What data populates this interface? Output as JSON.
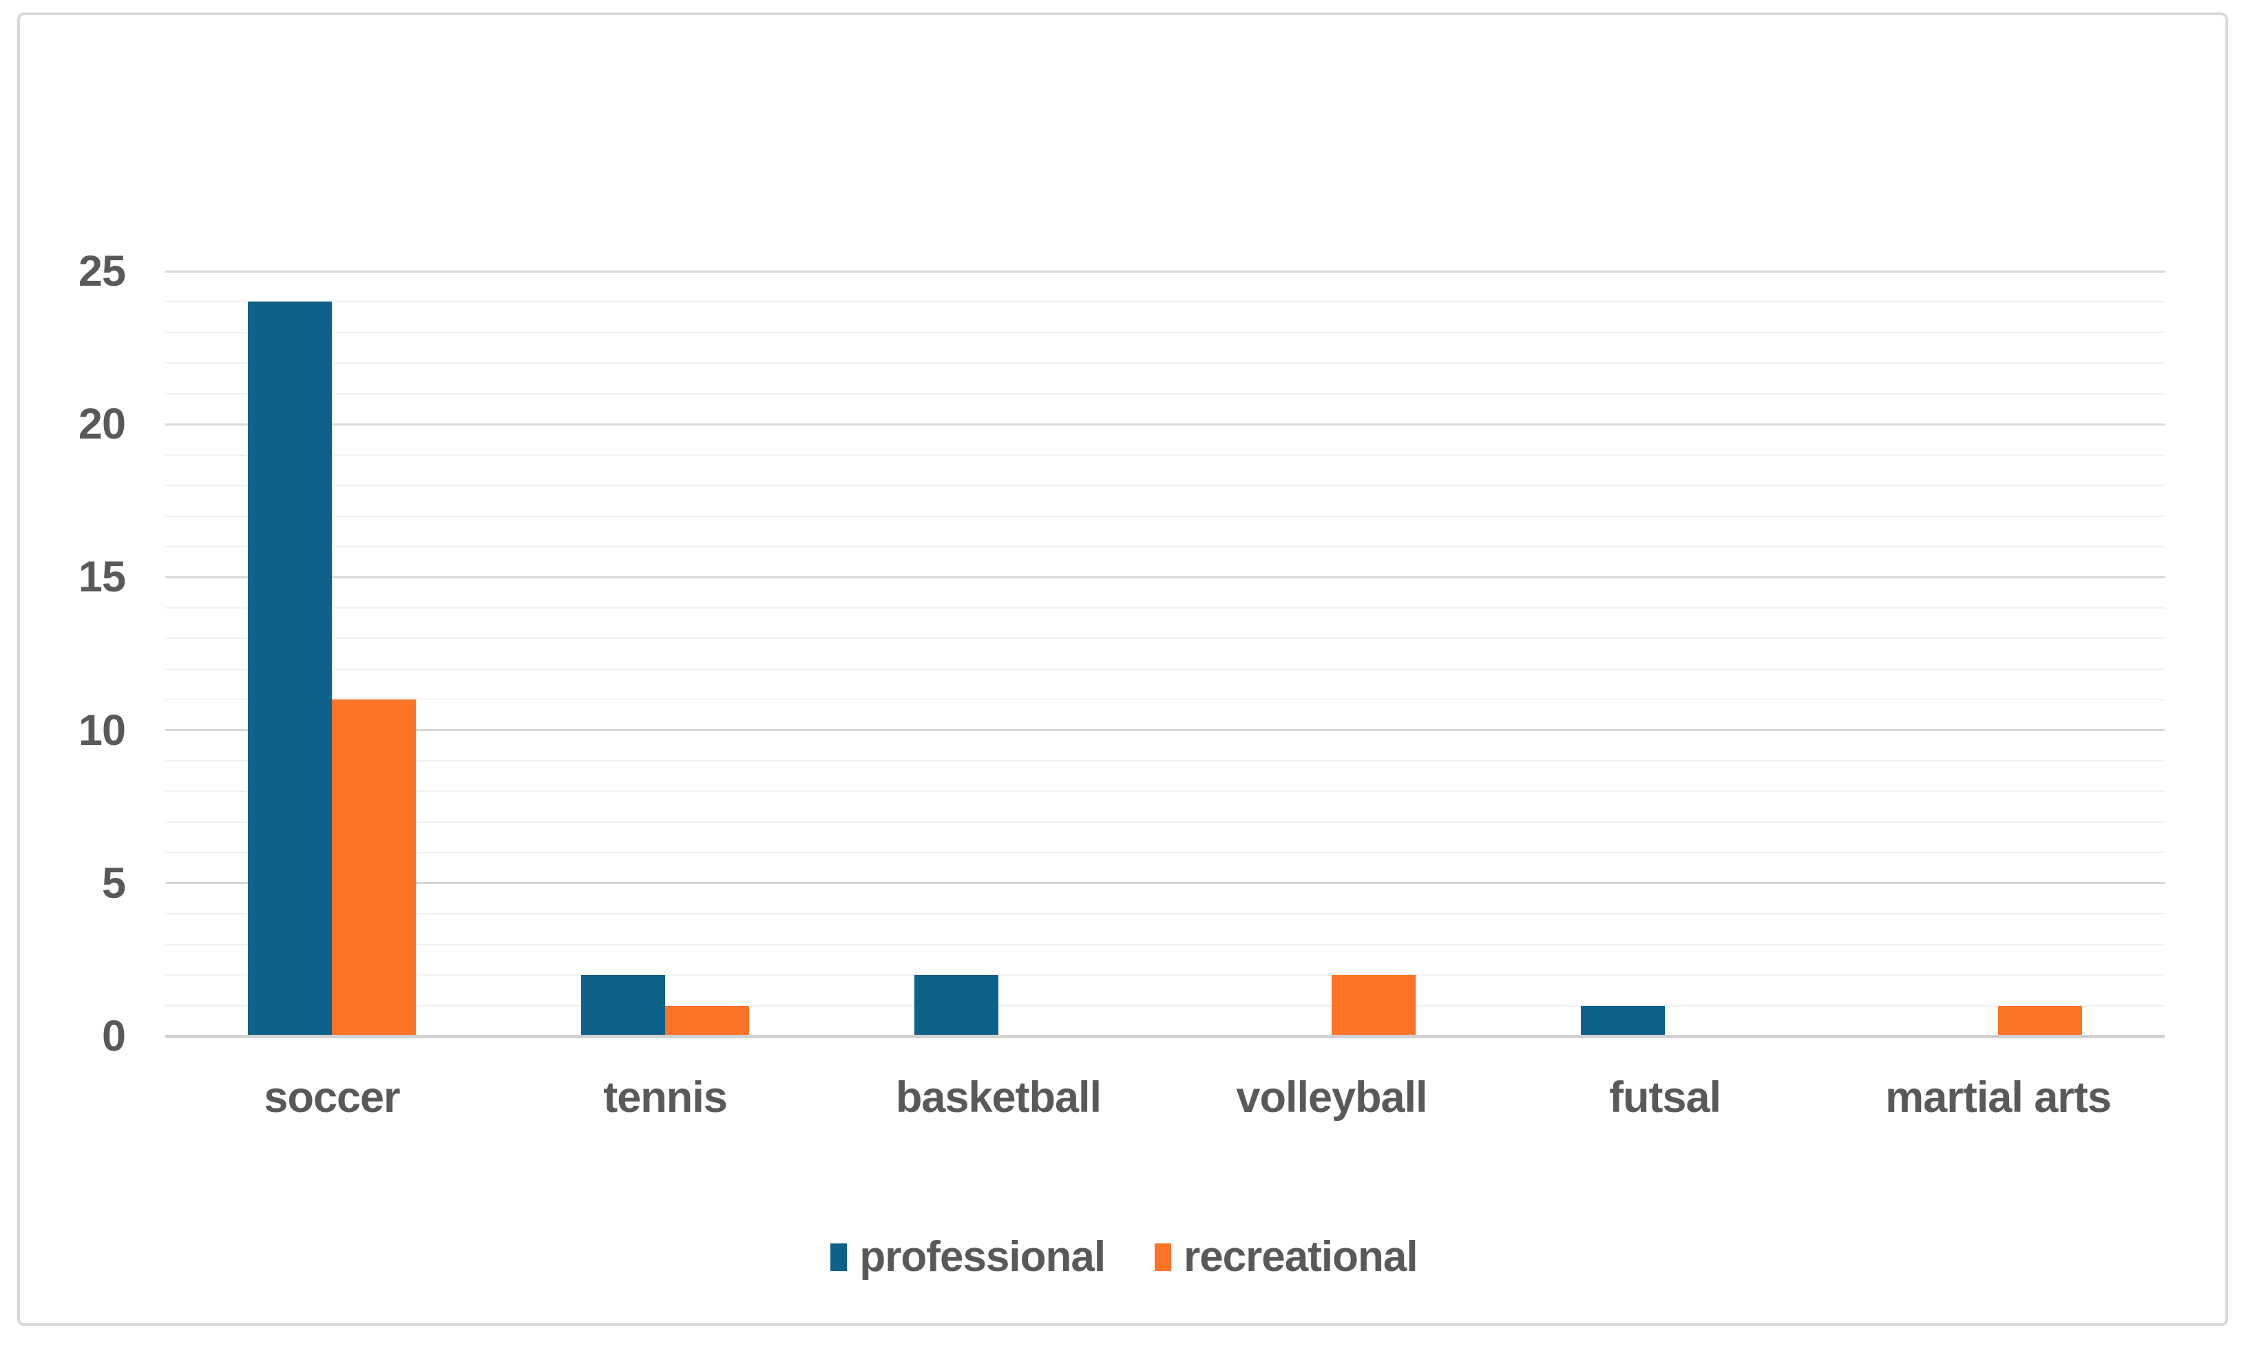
{
  "colors": {
    "professional": "#0E6189",
    "recreational": "#FB7327",
    "label_text": "#595959",
    "grid_minor": "#F1F1F1",
    "grid_major": "#D8D8D8",
    "axis_line": "#D2D2D2",
    "chart_border": "#D9D9D9",
    "background": "#FFFFFF"
  },
  "chart_data": {
    "type": "bar",
    "title": "",
    "xlabel": "",
    "ylabel": "",
    "categories": [
      "soccer",
      "tennis",
      "basketball",
      "volleyball",
      "futsal",
      "martial arts"
    ],
    "series": [
      {
        "name": "professional",
        "values": [
          24,
          2,
          2,
          0,
          1,
          0
        ]
      },
      {
        "name": "recreational",
        "values": [
          11,
          1,
          0,
          2,
          0,
          1
        ]
      }
    ],
    "ylim": [
      0,
      25
    ],
    "y_major_ticks": [
      "0",
      "5",
      "10",
      "15",
      "20",
      "25"
    ],
    "y_minor_unit": 1,
    "y_major_unit": 5,
    "grid": "on",
    "legend_position": "bottom"
  }
}
